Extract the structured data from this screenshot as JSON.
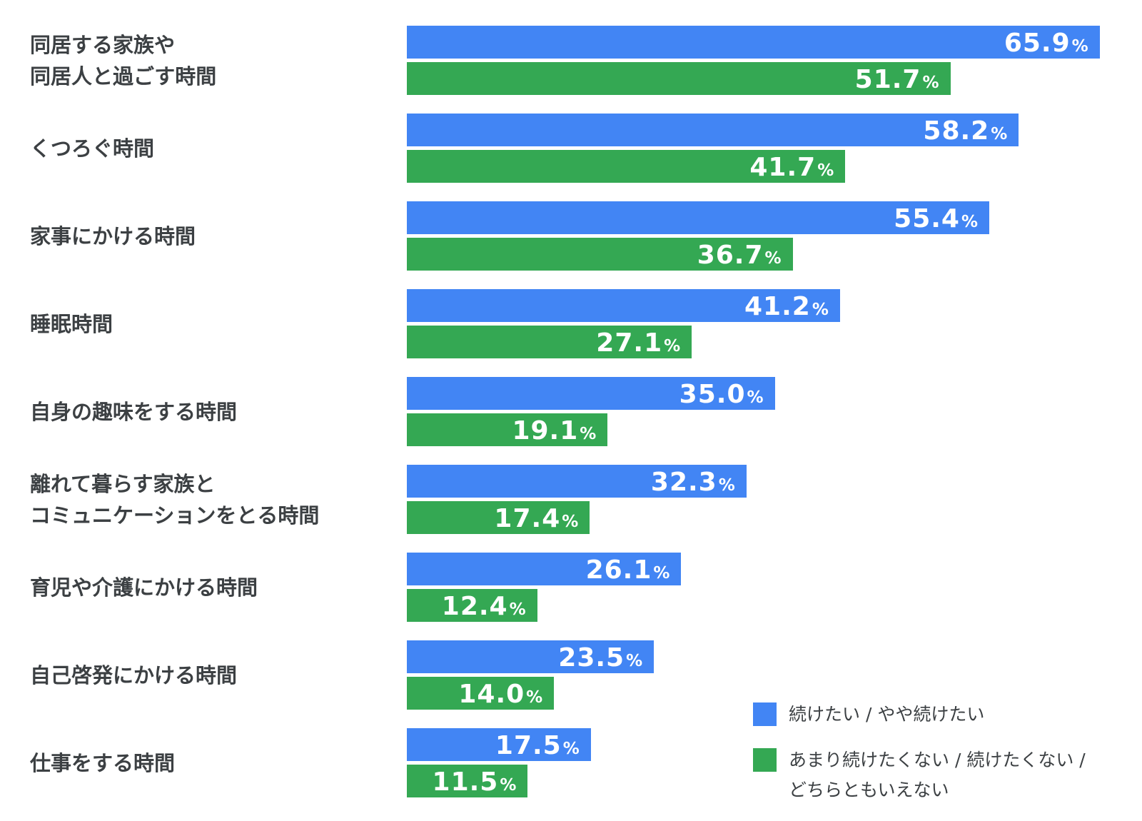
{
  "chart_data": {
    "type": "bar",
    "orientation": "horizontal",
    "categories": [
      "同居する家族や\n同居人と過ごす時間",
      "くつろぐ時間",
      "家事にかける時間",
      "睡眠時間",
      "自身の趣味をする時間",
      "離れて暮らす家族と\nコミュニケーションをとる時間",
      "育児や介護にかける時間",
      "自己啓発にかける時間",
      "仕事をする時間"
    ],
    "series": [
      {
        "name": "続けたい / やや続けたい",
        "color": "#4285f4",
        "values": [
          65.9,
          58.2,
          55.4,
          41.2,
          35.0,
          32.3,
          26.1,
          23.5,
          17.5
        ],
        "labels": [
          "65.9",
          "58.2",
          "55.4",
          "41.2",
          "35.0",
          "32.3",
          "26.1",
          "23.5",
          "17.5"
        ]
      },
      {
        "name": "あまり続けたくない / 続けたくない /\nどちらともいえない",
        "color": "#34a853",
        "values": [
          51.7,
          41.7,
          36.7,
          27.1,
          19.1,
          17.4,
          12.4,
          14.0,
          11.5
        ],
        "labels": [
          "51.7",
          "41.7",
          "36.7",
          "27.1",
          "19.1",
          "17.4",
          "12.4",
          "14.0",
          "11.5"
        ]
      }
    ],
    "unit": "%",
    "xlim": [
      0,
      100
    ],
    "grid": false,
    "legend_position": "bottom-right"
  }
}
